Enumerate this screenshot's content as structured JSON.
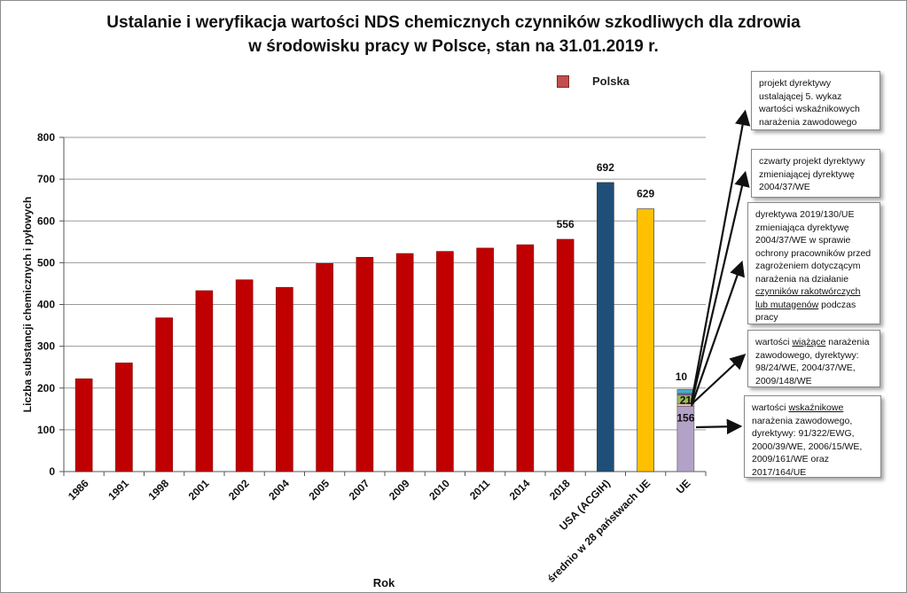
{
  "title": {
    "line1": "Ustalanie i weryfikacja wartości NDS chemicznych czynników szkodliwych dla zdrowia",
    "line2": "w środowisku pracy w Polsce, stan na 31.01.2019 r."
  },
  "legend": {
    "label": "Polska",
    "color": "#c0504d"
  },
  "chart_data": {
    "type": "bar",
    "title": "Ustalanie i weryfikacja wartości NDS chemicznych czynników szkodliwych dla zdrowia w środowisku pracy w Polsce, stan na 31.01.2019 r.",
    "xlabel": "Rok",
    "ylabel": "Liczba substancji chemicznych i pyłowych",
    "ylim": [
      0,
      800
    ],
    "yticks": [
      0,
      100,
      200,
      300,
      400,
      500,
      600,
      700,
      800
    ],
    "grid": true,
    "legend_position": "top-right",
    "categories": [
      "1986",
      "1991",
      "1998",
      "2001",
      "2002",
      "2004",
      "2005",
      "2007",
      "2009",
      "2010",
      "2011",
      "2014",
      "2018",
      "USA (ACGIH)",
      "średnio w 28 państwach UE",
      "UE"
    ],
    "values": [
      222,
      260,
      368,
      433,
      459,
      441,
      498,
      513,
      522,
      527,
      535,
      543,
      556,
      692,
      629,
      187
    ],
    "colors": [
      "#c00000",
      "#c00000",
      "#c00000",
      "#c00000",
      "#c00000",
      "#c00000",
      "#c00000",
      "#c00000",
      "#c00000",
      "#c00000",
      "#c00000",
      "#c00000",
      "#c00000",
      "#1f4e79",
      "#ffc000",
      "stacked"
    ],
    "data_labels": {
      "2018": "556",
      "USA (ACGIH)": "692",
      "średnio w 28 państwach UE": "629"
    },
    "ue_stack": [
      {
        "name": "wartości wskaźnikowe",
        "value": 156,
        "label": "156",
        "color": "#b3a2c7"
      },
      {
        "name": "wartości wiążące",
        "value": 6,
        "label": "",
        "color": "#e6b9b8"
      },
      {
        "name": "dyrektywa 2019/130/UE",
        "value": 21,
        "label": "21",
        "color": "#9bbb59"
      },
      {
        "name": "czwarty projekt",
        "value": 4,
        "label": "",
        "color": "#8064a2"
      },
      {
        "name": "projekt dyrektywy 5.",
        "value": 10,
        "label": "10",
        "color": "#4bacc6"
      }
    ]
  },
  "annotations": [
    {
      "id": "box1",
      "color": "#c6d9f1",
      "border": "#4f81bd",
      "text": "projekt dyrektywy ustalającej 5. wykaz wartości wskaźnikowych narażenia zawodowego"
    },
    {
      "id": "box2",
      "color": "#e4dfec",
      "border": "#8064a2",
      "text": "czwarty projekt dyrektywy zmieniającej dyrektywę 2004/37/WE"
    },
    {
      "id": "box3",
      "color": "#ebf1de",
      "border": "#9bbb59",
      "text_pre": "dyrektywa 2019/130/UE zmieniająca dyrektywę 2004/37/WE w sprawie ochrony pracowników przed zagrożeniem dotyczącym narażenia na działanie ",
      "text_u": "czynników rakotwórczych lub mutagenów",
      "text_post": " podczas pracy"
    },
    {
      "id": "box4",
      "color": "#f2dcdb",
      "border": "#c0504d",
      "text_pre": "wartości ",
      "text_u": "wiążące",
      "text_post": " narażenia zawodowego, dyrektywy: 98/24/WE, 2004/37/WE, 2009/148/WE"
    },
    {
      "id": "box5",
      "color": "#fde9d9",
      "border": "#f79646",
      "text_pre": "wartości ",
      "text_u": "wskaźnikowe",
      "text_post": " narażenia zawodowego, dyrektywy: 91/322/EWG, 2000/39/WE, 2006/15/WE, 2009/161/WE oraz 2017/164/UE"
    }
  ]
}
